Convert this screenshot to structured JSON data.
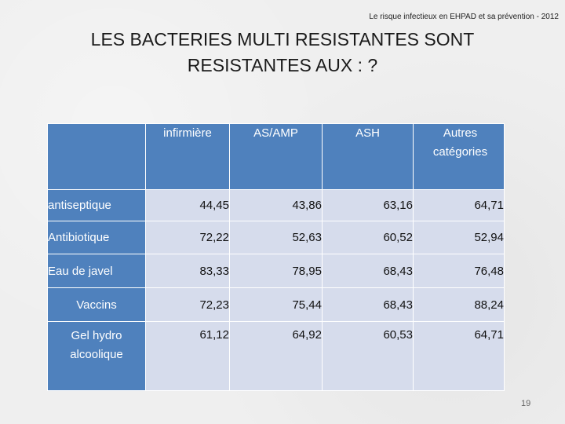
{
  "header_note": "Le risque infectieux en EHPAD et sa prévention - 2012",
  "title": {
    "line1": "LES BACTERIES MULTI RESISTANTES SONT",
    "line2": "RESISTANTES AUX : ?"
  },
  "table": {
    "columns": [
      "",
      "infirmière",
      "AS/AMP",
      "ASH",
      "Autres catégories"
    ],
    "rows": [
      {
        "label": "antiseptique",
        "values": [
          "44,45",
          "43,86",
          "63,16",
          "64,71"
        ]
      },
      {
        "label": "Antibiotique",
        "values": [
          "72,22",
          "52,63",
          "60,52",
          "52,94"
        ]
      },
      {
        "label": "Eau de javel",
        "values": [
          "83,33",
          "78,95",
          "68,43",
          "76,48"
        ]
      },
      {
        "label": "Vaccins",
        "values": [
          "72,23",
          "75,44",
          "68,43",
          "88,24"
        ]
      },
      {
        "label": "Gel hydro alcoolique",
        "values": [
          "61,12",
          "64,92",
          "60,53",
          "64,71"
        ]
      }
    ]
  },
  "page_number": "19",
  "colors": {
    "header_fill": "#4f81bd",
    "cell_fill": "#d6dcec",
    "background": "#efefef"
  }
}
